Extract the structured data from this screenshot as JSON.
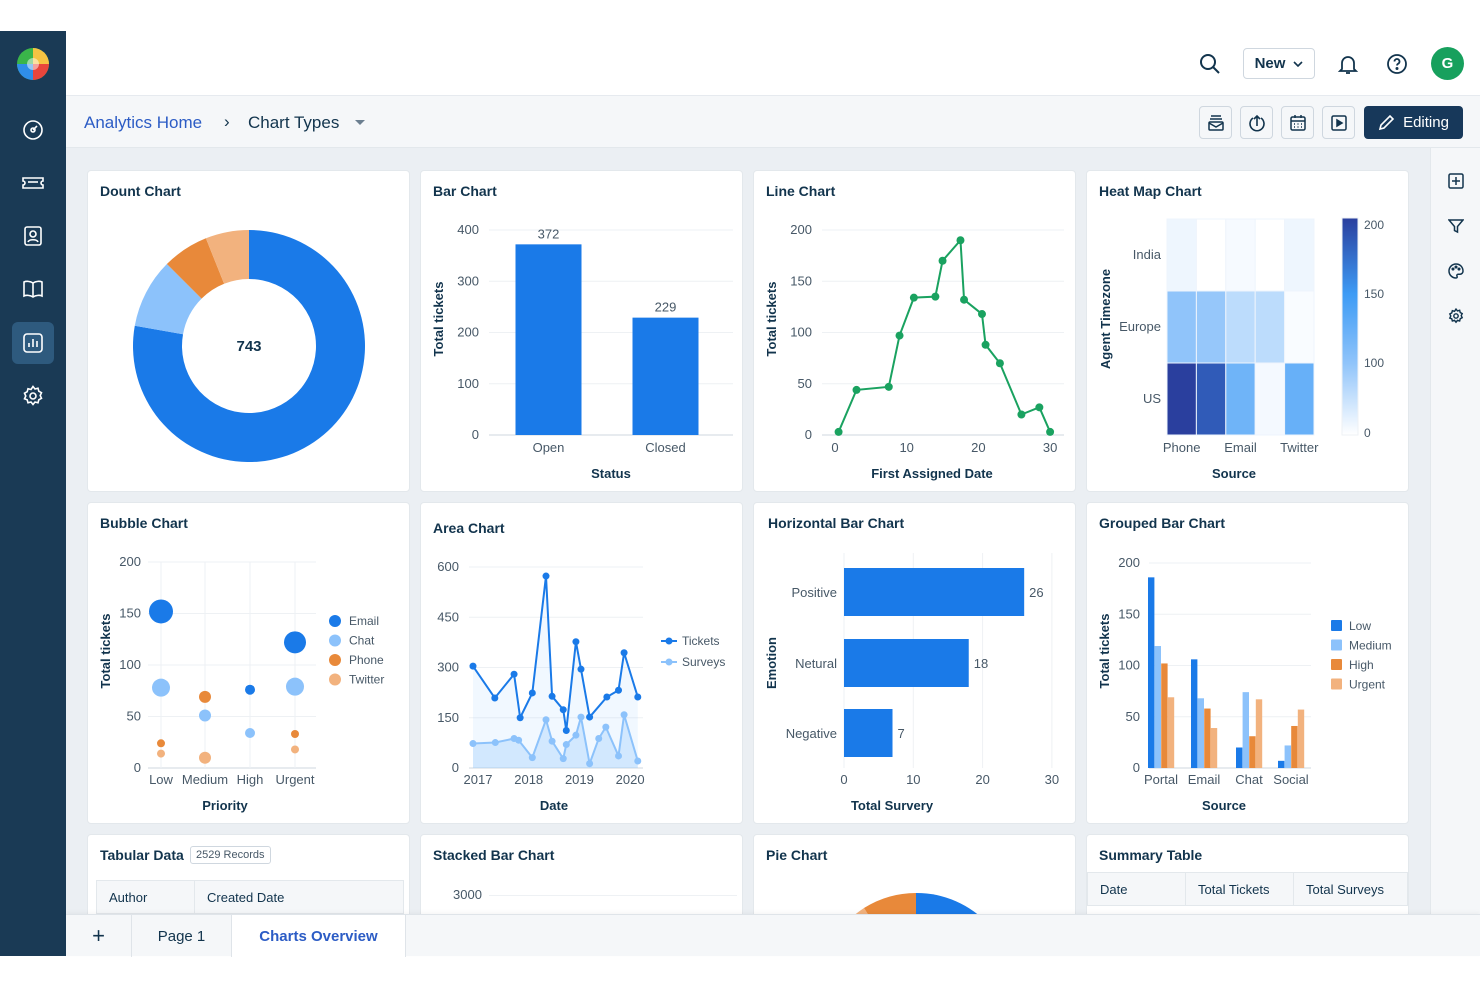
{
  "colors": {
    "sidebar": "#1a3a55",
    "brand_blue": "#2c5cc5",
    "editing_button": "#17385a",
    "avatar": "#17a05d",
    "blue": "#1a7ae8",
    "light_blue": "#8cc2fb",
    "orange": "#e8893a",
    "light_orange": "#f2b27e",
    "green": "#1aa260"
  },
  "sidebar": {
    "items": [
      {
        "icon": "dashboard-icon"
      },
      {
        "icon": "ticket-icon"
      },
      {
        "icon": "contacts-icon"
      },
      {
        "icon": "book-icon"
      },
      {
        "icon": "analytics-icon",
        "active": true
      },
      {
        "icon": "gear-icon"
      }
    ]
  },
  "header": {
    "new_label": "New",
    "avatar_initial": "G"
  },
  "breadcrumb": {
    "home": "Analytics Home",
    "separator": "›",
    "current": "Chart Types"
  },
  "toolbar": {
    "editing_label": "Editing"
  },
  "cards": {
    "donut": {
      "title": "Dount Chart"
    },
    "bar": {
      "title": "Bar Chart"
    },
    "line": {
      "title": "Line Chart"
    },
    "heatmap": {
      "title": "Heat Map Chart"
    },
    "bubble": {
      "title": "Bubble Chart"
    },
    "area": {
      "title": "Area Chart"
    },
    "hbar": {
      "title": "Horizontal Bar Chart"
    },
    "grouped": {
      "title": "Grouped Bar Chart"
    },
    "tabular": {
      "title": "Tabular Data",
      "badge": "2529 Records",
      "columns": [
        "Author",
        "Created Date"
      ]
    },
    "stacked": {
      "title": "Stacked Bar Chart",
      "ytick_top": "3000"
    },
    "pie": {
      "title": "Pie Chart"
    },
    "summary": {
      "title": "Summary Table",
      "columns": [
        "Date",
        "Total Tickets",
        "Total Surveys"
      ]
    }
  },
  "tabs": {
    "add": "+",
    "items": [
      "Page 1",
      "Charts Overview"
    ],
    "active": "Charts Overview"
  },
  "chart_data": [
    {
      "id": "donut",
      "type": "pie",
      "center_label": "743",
      "values": [
        578,
        72,
        48,
        45
      ],
      "colors": [
        "#1a7ae8",
        "#8cc2fb",
        "#e8893a",
        "#f2b27e"
      ]
    },
    {
      "id": "bar",
      "type": "bar",
      "categories": [
        "Open",
        "Closed"
      ],
      "values": [
        372,
        229
      ],
      "xlabel": "Status",
      "ylabel": "Total tickets",
      "ylim": [
        0,
        400
      ],
      "yticks": [
        0,
        100,
        200,
        300,
        400
      ]
    },
    {
      "id": "line",
      "type": "line",
      "x": [
        0.5,
        3,
        7.5,
        9,
        11,
        14,
        15,
        17.5,
        18,
        20.5,
        21,
        23,
        26,
        28.5,
        30
      ],
      "y": [
        3,
        44,
        47,
        97,
        134,
        135,
        170,
        190,
        132,
        118,
        88,
        70,
        20,
        27,
        3
      ],
      "xlabel": "First Assigned Date",
      "ylabel": "Total tickets",
      "xlim": [
        0,
        30
      ],
      "ylim": [
        0,
        200
      ],
      "xticks": [
        0,
        10,
        20,
        30
      ],
      "yticks": [
        0,
        50,
        100,
        150,
        200
      ]
    },
    {
      "id": "heatmap",
      "type": "heatmap",
      "rows": [
        "India",
        "Europe",
        "US"
      ],
      "x_labels": [
        "Phone",
        "Email",
        "Twitter"
      ],
      "values": [
        [
          15,
          0,
          8,
          0,
          15
        ],
        [
          100,
          95,
          60,
          60,
          5
        ],
        [
          200,
          185,
          120,
          10,
          125
        ]
      ],
      "xlabel": "Source",
      "ylabel": "Agent Timezone",
      "colorbar_ticks": [
        200,
        150,
        100,
        0
      ]
    },
    {
      "id": "bubble",
      "type": "scatter",
      "categories": [
        "Low",
        "Medium",
        "High",
        "Urgent"
      ],
      "series": [
        {
          "name": "Email",
          "color": "#1a7ae8",
          "points": [
            {
              "x": "Low",
              "y": 152,
              "size": 12
            },
            {
              "x": "High",
              "y": 76,
              "size": 5
            },
            {
              "x": "Urgent",
              "y": 122,
              "size": 11
            }
          ]
        },
        {
          "name": "Chat",
          "color": "#8cc2fb",
          "points": [
            {
              "x": "Low",
              "y": 78,
              "size": 9
            },
            {
              "x": "Medium",
              "y": 51,
              "size": 6
            },
            {
              "x": "High",
              "y": 34,
              "size": 5
            },
            {
              "x": "Urgent",
              "y": 79,
              "size": 9
            }
          ]
        },
        {
          "name": "Phone",
          "color": "#e8893a",
          "points": [
            {
              "x": "Low",
              "y": 24,
              "size": 4
            },
            {
              "x": "Medium",
              "y": 69,
              "size": 6
            },
            {
              "x": "Urgent",
              "y": 33,
              "size": 4
            }
          ]
        },
        {
          "name": "Twitter",
          "color": "#f2b27e",
          "points": [
            {
              "x": "Low",
              "y": 14,
              "size": 4
            },
            {
              "x": "Medium",
              "y": 10,
              "size": 6
            },
            {
              "x": "Urgent",
              "y": 18,
              "size": 4
            }
          ]
        }
      ],
      "xlabel": "Priority",
      "ylabel": "Total tickets",
      "ylim": [
        0,
        200
      ],
      "yticks": [
        0,
        50,
        100,
        150,
        200
      ],
      "legend": "right"
    },
    {
      "id": "area",
      "type": "area",
      "series": [
        {
          "name": "Tickets",
          "color": "#1a7ae8",
          "x": [
            2017.0,
            2017.43,
            2017.81,
            2017.93,
            2018.17,
            2018.44,
            2018.56,
            2018.78,
            2018.84,
            2019.03,
            2019.13,
            2019.3,
            2019.64,
            2019.87,
            2019.98,
            2020.25
          ],
          "y": [
            304,
            209,
            280,
            150,
            224,
            573,
            214,
            174,
            112,
            377,
            295,
            152,
            212,
            232,
            344,
            212
          ]
        },
        {
          "name": "Surveys",
          "color": "#8cc2fb",
          "x": [
            2017.0,
            2017.44,
            2017.81,
            2017.9,
            2018.17,
            2018.44,
            2018.56,
            2018.78,
            2018.84,
            2019.03,
            2019.13,
            2019.3,
            2019.48,
            2019.62,
            2019.87,
            2019.98,
            2020.25
          ],
          "y": [
            73,
            76,
            88,
            83,
            31,
            144,
            80,
            28,
            70,
            98,
            152,
            13,
            88,
            122,
            36,
            159,
            21
          ]
        }
      ],
      "xlabel": "Date",
      "xticks": [
        "2017",
        "2018",
        "2019",
        "2020"
      ],
      "ylim": [
        0,
        600
      ],
      "yticks": [
        0,
        150,
        300,
        450,
        600
      ],
      "legend": "right"
    },
    {
      "id": "hbar",
      "type": "bar",
      "orientation": "horizontal",
      "categories": [
        "Positive",
        "Netural",
        "Negative"
      ],
      "values": [
        26,
        18,
        7
      ],
      "xlabel": "Total Survery",
      "ylabel": "Emotion",
      "xlim": [
        0,
        30
      ],
      "xticks": [
        0,
        10,
        20,
        30
      ]
    },
    {
      "id": "grouped",
      "type": "bar",
      "categories": [
        "Portal",
        "Email",
        "Chat",
        "Social"
      ],
      "series": [
        {
          "name": "Low",
          "color": "#1a7ae8",
          "values": [
            186,
            106,
            20,
            7
          ]
        },
        {
          "name": "Medium",
          "color": "#8cc2fb",
          "values": [
            119,
            68,
            74,
            22
          ]
        },
        {
          "name": "High",
          "color": "#e8893a",
          "values": [
            102,
            58,
            31,
            41
          ]
        },
        {
          "name": "Urgent",
          "color": "#f2b27e",
          "values": [
            69,
            39,
            67,
            57
          ]
        }
      ],
      "xlabel": "Source",
      "ylabel": "Total tickets",
      "ylim": [
        0,
        200
      ],
      "yticks": [
        0,
        50,
        100,
        150,
        200
      ],
      "legend": "right"
    }
  ]
}
